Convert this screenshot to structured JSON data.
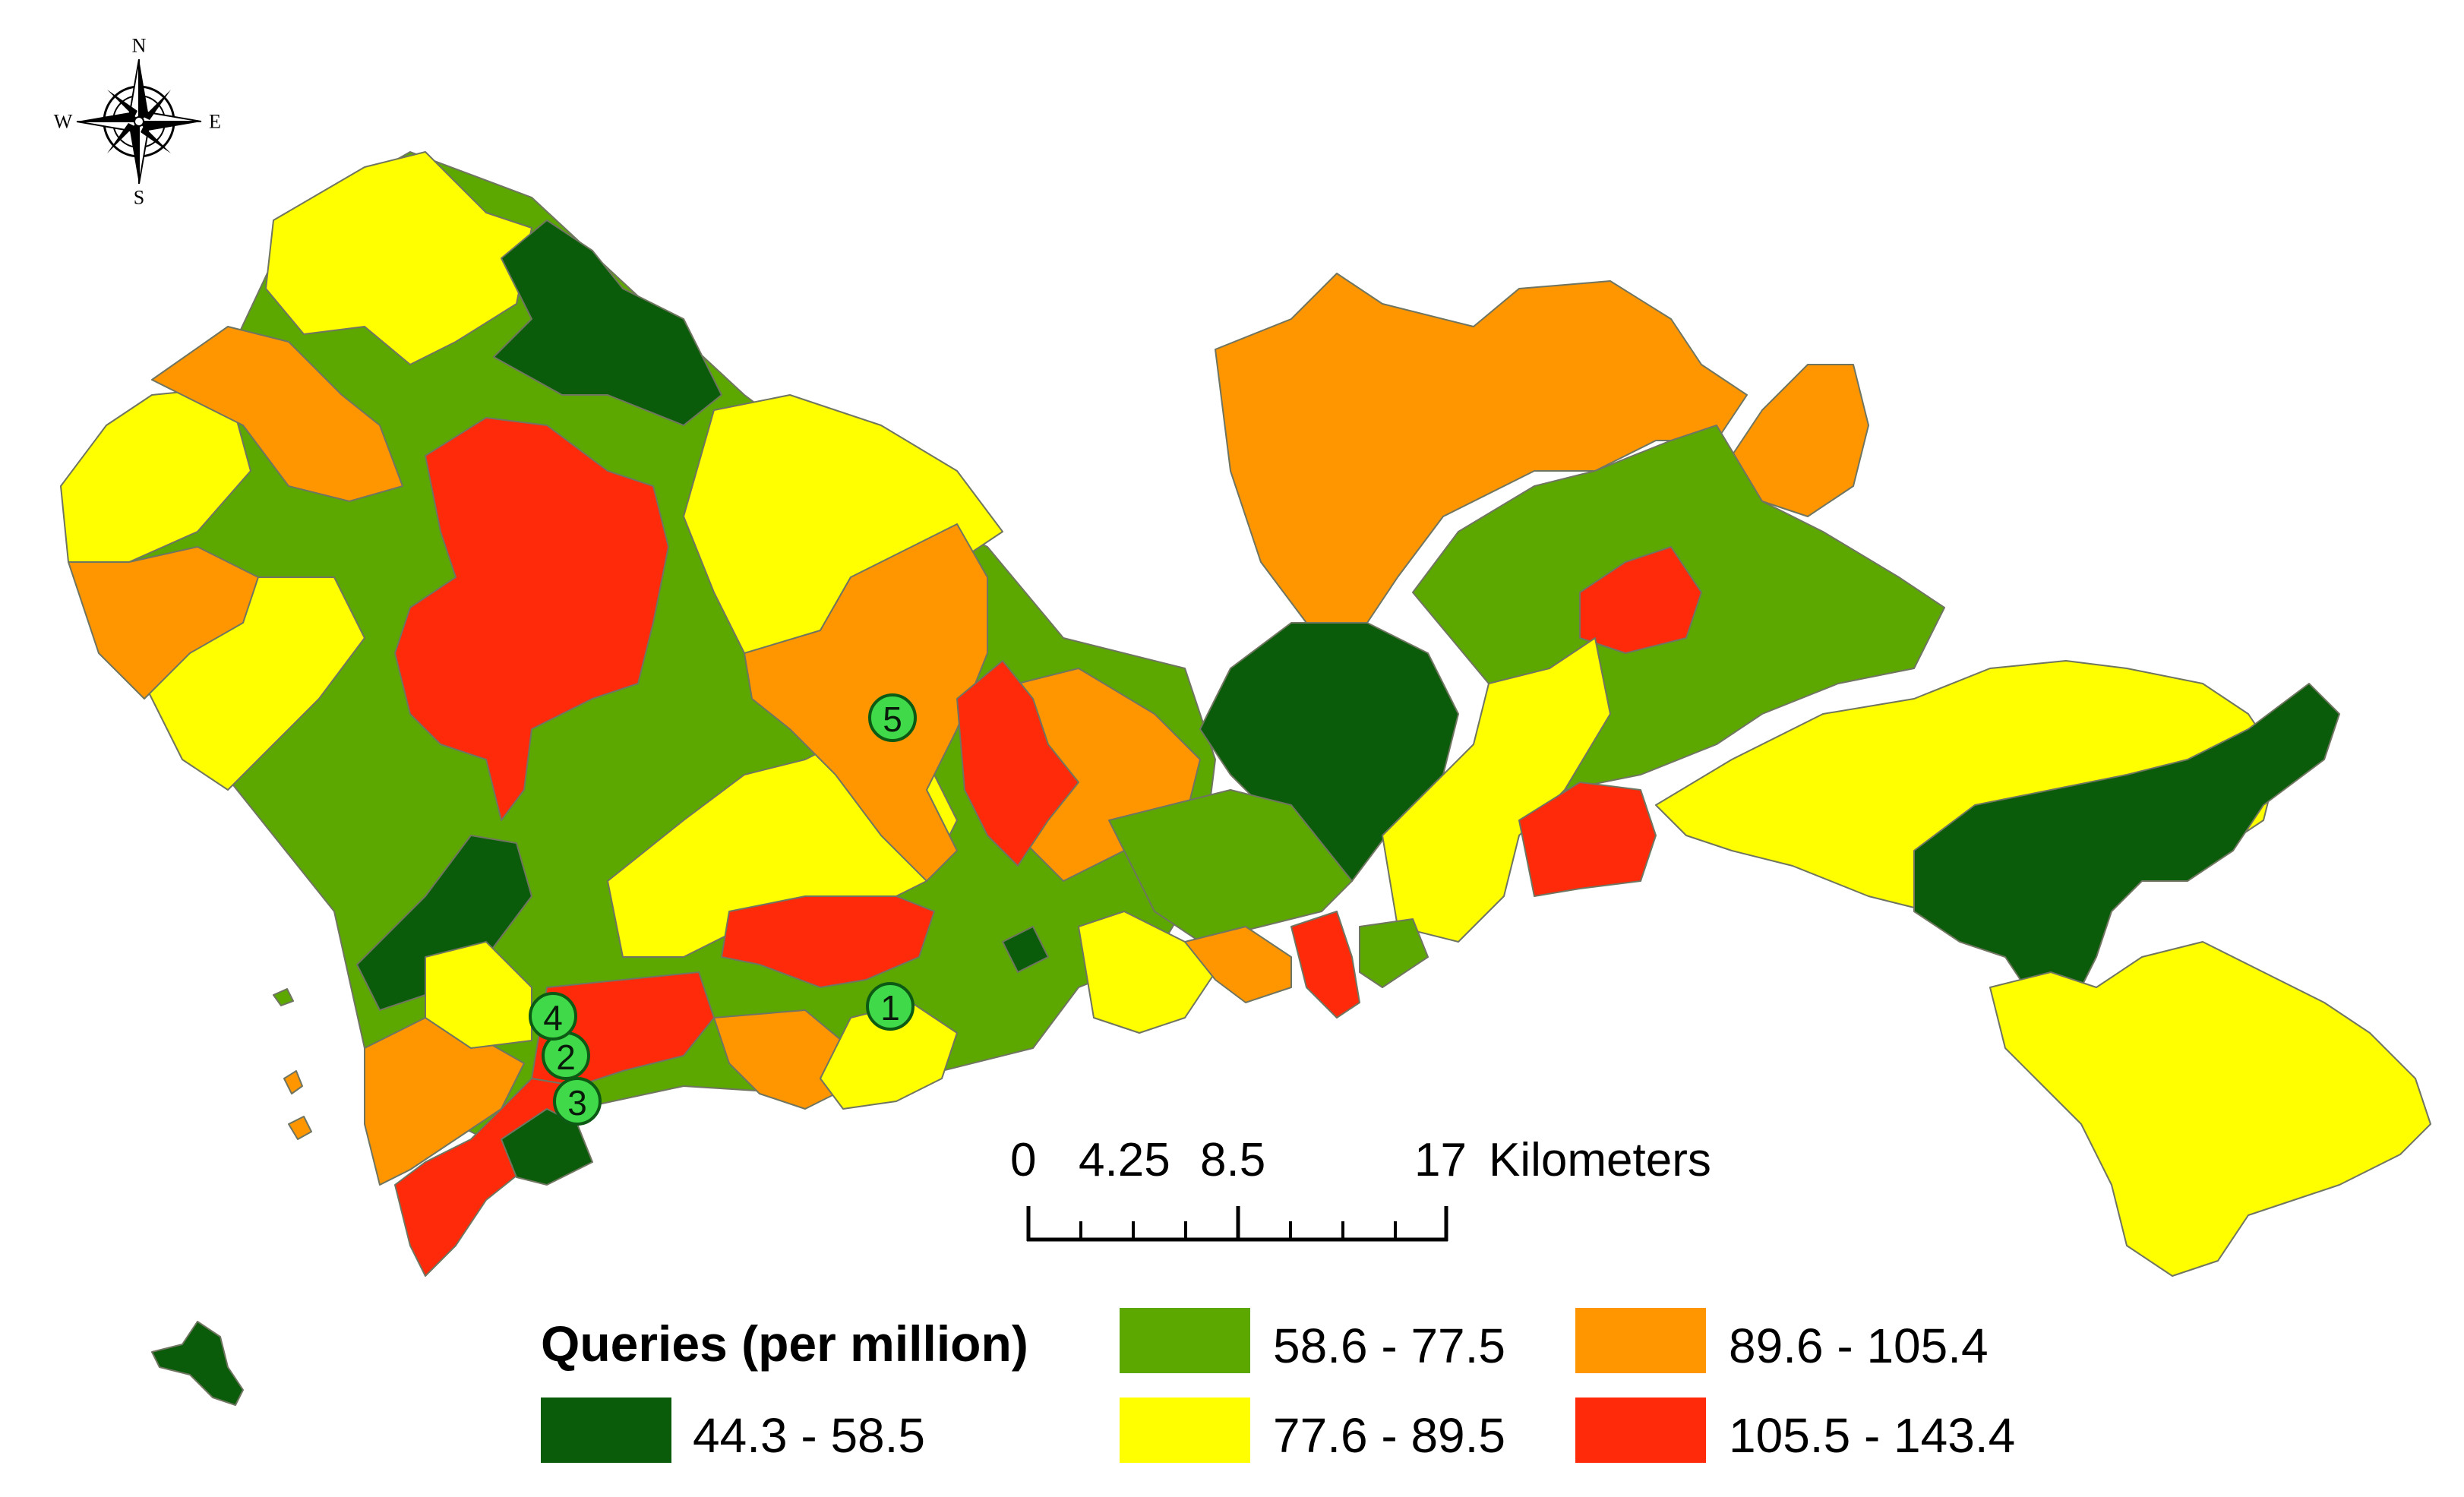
{
  "colors": {
    "dark_green": "#0a5c0a",
    "green": "#5ca800",
    "yellow": "#ffff00",
    "orange": "#ff9600",
    "red": "#ff2a0a",
    "marker": "#3fd94a"
  },
  "compass": {
    "n": "N",
    "s": "S",
    "e": "E",
    "w": "W",
    "icon": "compass-rose-icon"
  },
  "markers": [
    "1",
    "2",
    "3",
    "4",
    "5"
  ],
  "scale_bar": {
    "labels": [
      "0",
      "4.25",
      "8.5",
      "17"
    ],
    "unit": "Kilometers"
  },
  "legend": {
    "title": "Queries (per million)",
    "classes": [
      {
        "range": "44.3 - 58.5",
        "color": "#0a5c0a"
      },
      {
        "range": "58.6 - 77.5",
        "color": "#5ca800"
      },
      {
        "range": "77.6 - 89.5",
        "color": "#ffff00"
      },
      {
        "range": "89.6 - 105.4",
        "color": "#ff9600"
      },
      {
        "range": "105.5 - 143.4",
        "color": "#ff2a0a"
      }
    ]
  }
}
